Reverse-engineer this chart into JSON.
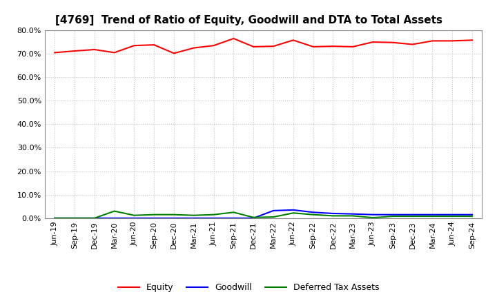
{
  "title": "[4769]  Trend of Ratio of Equity, Goodwill and DTA to Total Assets",
  "x_labels": [
    "Jun-19",
    "Sep-19",
    "Dec-19",
    "Mar-20",
    "Jun-20",
    "Sep-20",
    "Dec-20",
    "Mar-21",
    "Jun-21",
    "Sep-21",
    "Dec-21",
    "Mar-22",
    "Jun-22",
    "Sep-22",
    "Dec-22",
    "Mar-23",
    "Jun-23",
    "Sep-23",
    "Dec-23",
    "Mar-24",
    "Jun-24",
    "Sep-24"
  ],
  "equity": [
    70.5,
    71.2,
    71.8,
    70.5,
    73.5,
    73.8,
    70.2,
    72.5,
    73.5,
    76.5,
    73.0,
    73.2,
    75.8,
    73.0,
    73.2,
    73.0,
    75.0,
    74.8,
    74.0,
    75.5,
    75.5,
    75.8
  ],
  "goodwill": [
    0.0,
    0.0,
    0.0,
    0.0,
    0.0,
    0.0,
    0.0,
    0.0,
    0.0,
    0.0,
    0.0,
    3.2,
    3.5,
    2.5,
    2.0,
    1.8,
    1.5,
    1.5,
    1.5,
    1.5,
    1.5,
    1.5
  ],
  "dta": [
    0.0,
    0.0,
    0.0,
    3.0,
    1.2,
    1.5,
    1.5,
    1.2,
    1.5,
    2.5,
    0.3,
    0.5,
    2.2,
    1.5,
    1.0,
    1.0,
    0.2,
    0.8,
    0.8,
    0.8,
    0.8,
    0.8
  ],
  "equity_color": "#ff0000",
  "goodwill_color": "#0000ff",
  "dta_color": "#008000",
  "ylim_min": 0.0,
  "ylim_max": 80.0,
  "yticks": [
    0.0,
    10.0,
    20.0,
    30.0,
    40.0,
    50.0,
    60.0,
    70.0,
    80.0
  ],
  "background_color": "#ffffff",
  "plot_bg_color": "#ffffff",
  "grid_color": "#bbbbbb",
  "legend_labels": [
    "Equity",
    "Goodwill",
    "Deferred Tax Assets"
  ],
  "title_fontsize": 11,
  "tick_fontsize": 8,
  "legend_fontsize": 9
}
